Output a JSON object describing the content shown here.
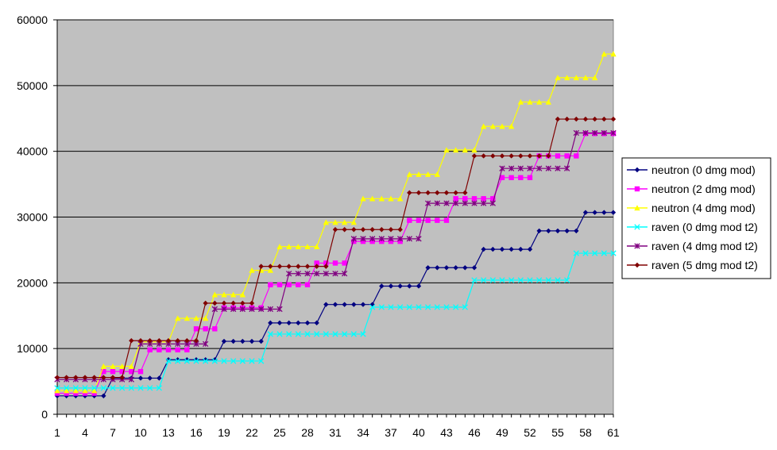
{
  "chart_data": {
    "type": "line",
    "title": "",
    "xlabel": "",
    "ylabel": "",
    "ylim": [
      0,
      60000
    ],
    "yticks": [
      0,
      10000,
      20000,
      30000,
      40000,
      50000,
      60000
    ],
    "xlim": [
      1,
      61
    ],
    "xticks": [
      1,
      4,
      7,
      10,
      13,
      16,
      19,
      22,
      25,
      28,
      31,
      34,
      37,
      40,
      43,
      46,
      49,
      52,
      55,
      58,
      61
    ],
    "grid": "horizontal",
    "plot_background": "#c0c0c0",
    "legend_position": "right",
    "series": [
      {
        "name": "neutron (0 dmg mod)",
        "color": "#000080",
        "marker": "diamond",
        "values": [
          2800,
          2800,
          2800,
          2800,
          2800,
          2800,
          5500,
          5500,
          5500,
          5500,
          5500,
          5500,
          8300,
          8300,
          8300,
          8300,
          8300,
          8300,
          11100,
          11100,
          11100,
          11100,
          11100,
          13900,
          13900,
          13900,
          13900,
          13900,
          13900,
          16700,
          16700,
          16700,
          16700,
          16700,
          16700,
          19500,
          19500,
          19500,
          19500,
          19500,
          22300,
          22300,
          22300,
          22300,
          22300,
          22300,
          25100,
          25100,
          25100,
          25100,
          25100,
          25100,
          27900,
          27900,
          27900,
          27900,
          27900,
          30700,
          30700,
          30700,
          30700
        ]
      },
      {
        "name": "neutron (2 dmg mod)",
        "color": "#ff00ff",
        "marker": "square",
        "values": [
          3200,
          3200,
          3200,
          3200,
          3200,
          6500,
          6500,
          6500,
          6500,
          6500,
          9800,
          9800,
          9800,
          9800,
          9800,
          13000,
          13000,
          13000,
          16200,
          16200,
          16200,
          16200,
          16200,
          19700,
          19700,
          19700,
          19700,
          19700,
          23000,
          23000,
          23000,
          23000,
          26300,
          26300,
          26300,
          26300,
          26300,
          26300,
          29500,
          29500,
          29500,
          29500,
          29500,
          32800,
          32800,
          32800,
          32800,
          32800,
          36000,
          36000,
          36000,
          36000,
          39300,
          39300,
          39300,
          39300,
          39300,
          42700,
          42700,
          42700,
          42700
        ]
      },
      {
        "name": "neutron (4 dmg mod)",
        "color": "#ffff00",
        "marker": "triangle",
        "values": [
          3600,
          3600,
          3600,
          3600,
          3600,
          7300,
          7300,
          7300,
          7300,
          11000,
          11000,
          11000,
          11000,
          14600,
          14600,
          14600,
          14600,
          18200,
          18200,
          18200,
          18200,
          21900,
          21900,
          21900,
          25500,
          25500,
          25500,
          25500,
          25500,
          29200,
          29200,
          29200,
          29200,
          32800,
          32800,
          32800,
          32800,
          32800,
          36500,
          36500,
          36500,
          36500,
          40200,
          40200,
          40200,
          40200,
          43800,
          43800,
          43800,
          43800,
          47500,
          47500,
          47500,
          47500,
          51200,
          51200,
          51200,
          51200,
          51200,
          54800,
          54800
        ]
      },
      {
        "name": "raven (0 dmg mod t2)",
        "color": "#00ffff",
        "marker": "x",
        "values": [
          4000,
          4000,
          4000,
          4000,
          4000,
          4000,
          4000,
          4000,
          4000,
          4000,
          4000,
          4000,
          8100,
          8100,
          8100,
          8100,
          8100,
          8100,
          8100,
          8100,
          8100,
          8100,
          8100,
          12200,
          12200,
          12200,
          12200,
          12200,
          12200,
          12200,
          12200,
          12200,
          12200,
          12200,
          16300,
          16300,
          16300,
          16300,
          16300,
          16300,
          16300,
          16300,
          16300,
          16300,
          16300,
          20400,
          20400,
          20400,
          20400,
          20400,
          20400,
          20400,
          20400,
          20400,
          20400,
          20400,
          24500,
          24500,
          24500,
          24500,
          24500
        ]
      },
      {
        "name": "raven (4 dmg mod t2)",
        "color": "#800080",
        "marker": "star",
        "values": [
          5300,
          5300,
          5300,
          5300,
          5300,
          5300,
          5300,
          5300,
          5300,
          10700,
          10700,
          10700,
          10700,
          10700,
          10700,
          10700,
          10700,
          16000,
          16000,
          16000,
          16000,
          16000,
          16000,
          16000,
          16000,
          21400,
          21400,
          21400,
          21400,
          21400,
          21400,
          21400,
          26700,
          26700,
          26700,
          26700,
          26700,
          26700,
          26700,
          26700,
          32100,
          32100,
          32100,
          32100,
          32100,
          32100,
          32100,
          32100,
          37400,
          37400,
          37400,
          37400,
          37400,
          37400,
          37400,
          37400,
          42800,
          42800,
          42800,
          42800,
          42800
        ]
      },
      {
        "name": "raven (5 dmg mod t2)",
        "color": "#800000",
        "marker": "diamond",
        "values": [
          5600,
          5600,
          5600,
          5600,
          5600,
          5600,
          5600,
          5600,
          11200,
          11200,
          11200,
          11200,
          11200,
          11200,
          11200,
          11200,
          16900,
          16900,
          16900,
          16900,
          16900,
          16900,
          22500,
          22500,
          22500,
          22500,
          22500,
          22500,
          22500,
          22500,
          28100,
          28100,
          28100,
          28100,
          28100,
          28100,
          28100,
          28100,
          33700,
          33700,
          33700,
          33700,
          33700,
          33700,
          33700,
          39300,
          39300,
          39300,
          39300,
          39300,
          39300,
          39300,
          39300,
          39300,
          44900,
          44900,
          44900,
          44900,
          44900,
          44900,
          44900
        ]
      }
    ]
  }
}
